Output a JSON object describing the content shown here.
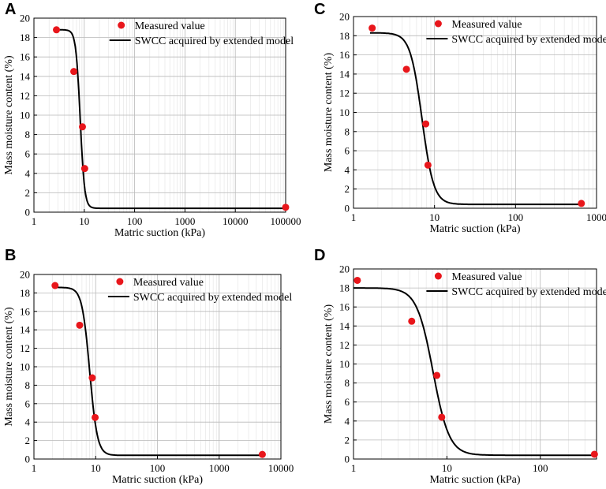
{
  "figure_title": "",
  "colors": {
    "point": "#e8161b",
    "curve": "#000000",
    "grid_major": "#b9b9b9",
    "grid_minor": "#e2e2e2"
  },
  "chart_data": [
    {
      "panel": "A",
      "type": "scatter",
      "xscale": "log",
      "xlabel": "Matric suction (kPa)",
      "ylabel": "Mass moisture content (%)",
      "xlim": [
        1,
        100000
      ],
      "ylim": [
        0,
        20
      ],
      "xticks": [
        1,
        10,
        100,
        1000,
        10000,
        100000
      ],
      "xtick_labels": [
        "1",
        "10",
        "100",
        "1000",
        "10000",
        "100000"
      ],
      "yticks": [
        0,
        2,
        4,
        6,
        8,
        10,
        12,
        14,
        16,
        18,
        20
      ],
      "ytick_labels": [
        "0",
        "2",
        "4",
        "6",
        "8",
        "10",
        "12",
        "14",
        "16",
        "18",
        "20"
      ],
      "legend": [
        "Measured value",
        "SWCC acquired by extended model"
      ],
      "legend_position": "top-right",
      "series": [
        {
          "name": "Measured value",
          "kind": "scatter",
          "x": [
            2.8,
            6.2,
            9.2,
            10.2,
            100000
          ],
          "y": [
            18.8,
            14.5,
            8.8,
            4.5,
            0.5
          ]
        },
        {
          "name": "SWCC acquired by extended model",
          "kind": "line",
          "x50": 8.3,
          "steepness": 10,
          "y_top": 18.8,
          "y_bottom": 0.4,
          "x_start": 2.6,
          "x_end": 100000
        }
      ]
    },
    {
      "panel": "C",
      "type": "scatter",
      "xscale": "log",
      "xlabel": "Matric suction (kPa)",
      "ylabel": "Mass moisture content (%)",
      "xlim": [
        1,
        1000
      ],
      "ylim": [
        0,
        20
      ],
      "xticks": [
        1,
        10,
        100,
        1000
      ],
      "xtick_labels": [
        "1",
        "10",
        "100",
        "1000"
      ],
      "yticks": [
        0,
        2,
        4,
        6,
        8,
        10,
        12,
        14,
        16,
        18,
        20
      ],
      "ytick_labels": [
        "0",
        "2",
        "4",
        "6",
        "8",
        "10",
        "12",
        "14",
        "16",
        "18",
        "20"
      ],
      "legend": [
        "Measured value",
        "SWCC acquired by extended model"
      ],
      "legend_position": "top-right",
      "series": [
        {
          "name": "Measured value",
          "kind": "scatter",
          "x": [
            1.7,
            4.5,
            7.8,
            8.3,
            650
          ],
          "y": [
            18.8,
            14.5,
            8.8,
            4.5,
            0.5
          ]
        },
        {
          "name": "SWCC acquired by extended model",
          "kind": "line",
          "x50": 7.0,
          "steepness": 6,
          "y_top": 18.3,
          "y_bottom": 0.4,
          "x_start": 1.6,
          "x_end": 700
        }
      ]
    },
    {
      "panel": "B",
      "type": "scatter",
      "xscale": "log",
      "xlabel": "Matric suction (kPa)",
      "ylabel": "Mass moisture content (%)",
      "xlim": [
        1,
        10000
      ],
      "ylim": [
        0,
        20
      ],
      "xticks": [
        1,
        10,
        100,
        1000,
        10000
      ],
      "xtick_labels": [
        "1",
        "10",
        "100",
        "1000",
        "10000"
      ],
      "yticks": [
        0,
        2,
        4,
        6,
        8,
        10,
        12,
        14,
        16,
        18,
        20
      ],
      "ytick_labels": [
        "0",
        "2",
        "4",
        "6",
        "8",
        "10",
        "12",
        "14",
        "16",
        "18",
        "20"
      ],
      "legend": [
        "Measured value",
        "SWCC acquired by extended model"
      ],
      "legend_position": "top-right",
      "series": [
        {
          "name": "Measured value",
          "kind": "scatter",
          "x": [
            2.2,
            5.5,
            8.8,
            9.8,
            5000
          ],
          "y": [
            18.8,
            14.5,
            8.8,
            4.5,
            0.5
          ]
        },
        {
          "name": "SWCC acquired by extended model",
          "kind": "line",
          "x50": 8.0,
          "steepness": 7,
          "y_top": 18.6,
          "y_bottom": 0.4,
          "x_start": 2.1,
          "x_end": 5000
        }
      ]
    },
    {
      "panel": "D",
      "type": "scatter",
      "xscale": "log",
      "xlabel": "Matric suction (kPa)",
      "ylabel": "Mass moisture content (%)",
      "xlim": [
        1,
        400
      ],
      "ylim": [
        0,
        20
      ],
      "xticks": [
        1,
        10,
        100
      ],
      "xtick_labels": [
        "1",
        "10",
        "100"
      ],
      "yticks": [
        0,
        2,
        4,
        6,
        8,
        10,
        12,
        14,
        16,
        18,
        20
      ],
      "ytick_labels": [
        "0",
        "2",
        "4",
        "6",
        "8",
        "10",
        "12",
        "14",
        "16",
        "18",
        "20"
      ],
      "legend": [
        "Measured value",
        "SWCC acquired by extended model"
      ],
      "legend_position": "top-right",
      "series": [
        {
          "name": "Measured value",
          "kind": "scatter",
          "x": [
            1.1,
            4.2,
            7.8,
            8.8,
            380
          ],
          "y": [
            18.8,
            14.5,
            8.8,
            4.4,
            0.5
          ]
        },
        {
          "name": "SWCC acquired by extended model",
          "kind": "line",
          "x50": 7.1,
          "steepness": 5,
          "y_top": 18.0,
          "y_bottom": 0.4,
          "x_start": 1.0,
          "x_end": 380
        }
      ]
    }
  ]
}
